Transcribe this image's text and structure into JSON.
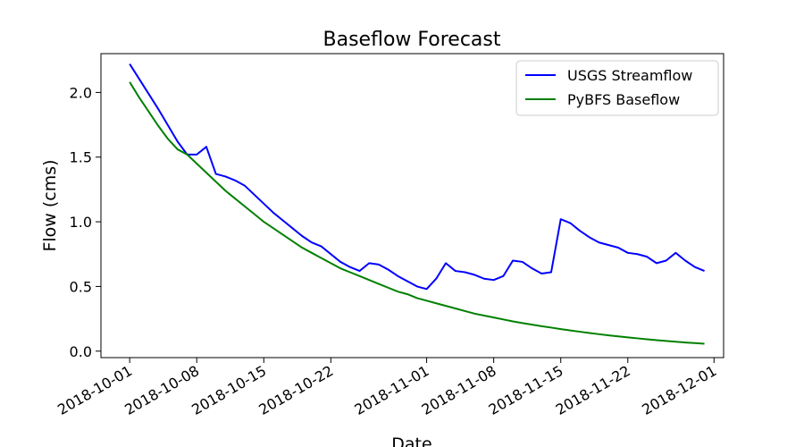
{
  "chart_data": {
    "type": "line",
    "title": "Baseflow Forecast",
    "xlabel": "Date",
    "ylabel": "Flow (cms)",
    "ylim": [
      -0.05,
      2.3
    ],
    "xlim": [
      "2018-09-28",
      "2018-12-02"
    ],
    "legend_position": "top-right",
    "grid": false,
    "x_ticks": [
      "2018-10-01",
      "2018-10-08",
      "2018-10-15",
      "2018-10-22",
      "2018-11-01",
      "2018-11-08",
      "2018-11-15",
      "2018-11-22",
      "2018-12-01"
    ],
    "y_ticks": [
      "0.0",
      "0.5",
      "1.0",
      "1.5",
      "2.0"
    ],
    "series": [
      {
        "name": "USGS Streamflow",
        "color": "#0000ff",
        "points": [
          [
            "2018-10-01",
            2.22
          ],
          [
            "2018-10-04",
            1.87
          ],
          [
            "2018-10-06",
            1.62
          ],
          [
            "2018-10-07",
            1.52
          ],
          [
            "2018-10-08",
            1.52
          ],
          [
            "2018-10-09",
            1.58
          ],
          [
            "2018-10-10",
            1.37
          ],
          [
            "2018-10-11",
            1.35
          ],
          [
            "2018-10-12",
            1.32
          ],
          [
            "2018-10-13",
            1.28
          ],
          [
            "2018-10-14",
            1.21
          ],
          [
            "2018-10-15",
            1.14
          ],
          [
            "2018-10-16",
            1.07
          ],
          [
            "2018-10-17",
            1.01
          ],
          [
            "2018-10-18",
            0.95
          ],
          [
            "2018-10-19",
            0.89
          ],
          [
            "2018-10-20",
            0.84
          ],
          [
            "2018-10-21",
            0.81
          ],
          [
            "2018-10-22",
            0.75
          ],
          [
            "2018-10-23",
            0.69
          ],
          [
            "2018-10-24",
            0.65
          ],
          [
            "2018-10-25",
            0.62
          ],
          [
            "2018-10-26",
            0.68
          ],
          [
            "2018-10-27",
            0.67
          ],
          [
            "2018-10-28",
            0.63
          ],
          [
            "2018-10-29",
            0.58
          ],
          [
            "2018-10-30",
            0.54
          ],
          [
            "2018-10-31",
            0.5
          ],
          [
            "2018-11-01",
            0.48
          ],
          [
            "2018-11-02",
            0.56
          ],
          [
            "2018-11-03",
            0.68
          ],
          [
            "2018-11-04",
            0.62
          ],
          [
            "2018-11-05",
            0.61
          ],
          [
            "2018-11-06",
            0.59
          ],
          [
            "2018-11-07",
            0.56
          ],
          [
            "2018-11-08",
            0.55
          ],
          [
            "2018-11-09",
            0.58
          ],
          [
            "2018-11-10",
            0.7
          ],
          [
            "2018-11-11",
            0.69
          ],
          [
            "2018-11-12",
            0.64
          ],
          [
            "2018-11-13",
            0.6
          ],
          [
            "2018-11-14",
            0.61
          ],
          [
            "2018-11-15",
            1.02
          ],
          [
            "2018-11-16",
            0.99
          ],
          [
            "2018-11-17",
            0.93
          ],
          [
            "2018-11-18",
            0.88
          ],
          [
            "2018-11-19",
            0.84
          ],
          [
            "2018-11-20",
            0.82
          ],
          [
            "2018-11-21",
            0.8
          ],
          [
            "2018-11-22",
            0.76
          ],
          [
            "2018-11-23",
            0.75
          ],
          [
            "2018-11-24",
            0.73
          ],
          [
            "2018-11-25",
            0.68
          ],
          [
            "2018-11-26",
            0.7
          ],
          [
            "2018-11-27",
            0.76
          ],
          [
            "2018-11-28",
            0.7
          ],
          [
            "2018-11-29",
            0.65
          ],
          [
            "2018-11-30",
            0.62
          ]
        ]
      },
      {
        "name": "PyBFS Baseflow",
        "color": "#008000",
        "points": [
          [
            "2018-10-01",
            2.08
          ],
          [
            "2018-10-02",
            1.96
          ],
          [
            "2018-10-03",
            1.85
          ],
          [
            "2018-10-04",
            1.74
          ],
          [
            "2018-10-05",
            1.64
          ],
          [
            "2018-10-06",
            1.56
          ],
          [
            "2018-10-07",
            1.52
          ],
          [
            "2018-10-08",
            1.45
          ],
          [
            "2018-10-09",
            1.38
          ],
          [
            "2018-10-10",
            1.31
          ],
          [
            "2018-10-11",
            1.24
          ],
          [
            "2018-10-12",
            1.18
          ],
          [
            "2018-10-13",
            1.12
          ],
          [
            "2018-10-14",
            1.06
          ],
          [
            "2018-10-15",
            1.0
          ],
          [
            "2018-10-16",
            0.95
          ],
          [
            "2018-10-17",
            0.9
          ],
          [
            "2018-10-18",
            0.85
          ],
          [
            "2018-10-19",
            0.8
          ],
          [
            "2018-10-20",
            0.76
          ],
          [
            "2018-10-21",
            0.72
          ],
          [
            "2018-10-22",
            0.68
          ],
          [
            "2018-10-23",
            0.64
          ],
          [
            "2018-10-24",
            0.61
          ],
          [
            "2018-10-25",
            0.58
          ],
          [
            "2018-10-26",
            0.55
          ],
          [
            "2018-10-27",
            0.52
          ],
          [
            "2018-10-28",
            0.49
          ],
          [
            "2018-10-29",
            0.46
          ],
          [
            "2018-10-30",
            0.44
          ],
          [
            "2018-10-31",
            0.41
          ],
          [
            "2018-11-01",
            0.39
          ],
          [
            "2018-11-02",
            0.37
          ],
          [
            "2018-11-03",
            0.35
          ],
          [
            "2018-11-04",
            0.33
          ],
          [
            "2018-11-05",
            0.31
          ],
          [
            "2018-11-06",
            0.29
          ],
          [
            "2018-11-07",
            0.275
          ],
          [
            "2018-11-08",
            0.26
          ],
          [
            "2018-11-09",
            0.245
          ],
          [
            "2018-11-10",
            0.23
          ],
          [
            "2018-11-11",
            0.217
          ],
          [
            "2018-11-12",
            0.205
          ],
          [
            "2018-11-13",
            0.193
          ],
          [
            "2018-11-14",
            0.182
          ],
          [
            "2018-11-15",
            0.17
          ],
          [
            "2018-11-16",
            0.16
          ],
          [
            "2018-11-17",
            0.15
          ],
          [
            "2018-11-18",
            0.14
          ],
          [
            "2018-11-19",
            0.131
          ],
          [
            "2018-11-20",
            0.122
          ],
          [
            "2018-11-21",
            0.114
          ],
          [
            "2018-11-22",
            0.106
          ],
          [
            "2018-11-23",
            0.099
          ],
          [
            "2018-11-24",
            0.092
          ],
          [
            "2018-11-25",
            0.085
          ],
          [
            "2018-11-26",
            0.079
          ],
          [
            "2018-11-27",
            0.073
          ],
          [
            "2018-11-28",
            0.067
          ],
          [
            "2018-11-29",
            0.062
          ],
          [
            "2018-11-30",
            0.057
          ]
        ]
      }
    ]
  }
}
